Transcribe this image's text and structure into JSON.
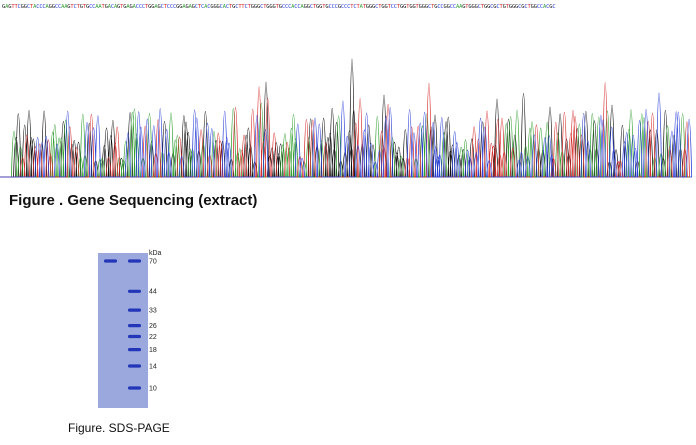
{
  "sequencing": {
    "sequence_text": "GAGTTCGGCTACCCAGGCCAAGTCTGTGCCAATGACAGTGAGACCCTGGAGCTCCCGGAGAGCTCACGGGCACTGCTTCTGGGCTGGGTGCCCACCAGGCTGGTGCCCGCCCTCTATGGGCTGGTCCTGGTGGTGGGCTGCCGGCCAAGTGGGCTGGCGCTGTGGGCGCTGGCCACGC",
    "base_colors": {
      "A": "#2e9e2e",
      "C": "#2a3fd6",
      "G": "#111111",
      "T": "#d42a2a"
    },
    "caption": "Figure . Gene Sequencing (extract)"
  },
  "gel": {
    "unit_label": "kDa",
    "markers": [
      {
        "label": "70",
        "kda": 70
      },
      {
        "label": "44",
        "kda": 44
      },
      {
        "label": "33",
        "kda": 33
      },
      {
        "label": "26",
        "kda": 26
      },
      {
        "label": "22",
        "kda": 22
      },
      {
        "label": "18",
        "kda": 18
      },
      {
        "label": "14",
        "kda": 14
      },
      {
        "label": "10",
        "kda": 10
      }
    ],
    "sample_band_kda": 70,
    "lane_color": "#9aa8dd",
    "band_color": "#2336b8",
    "caption": "Figure. SDS-PAGE"
  }
}
